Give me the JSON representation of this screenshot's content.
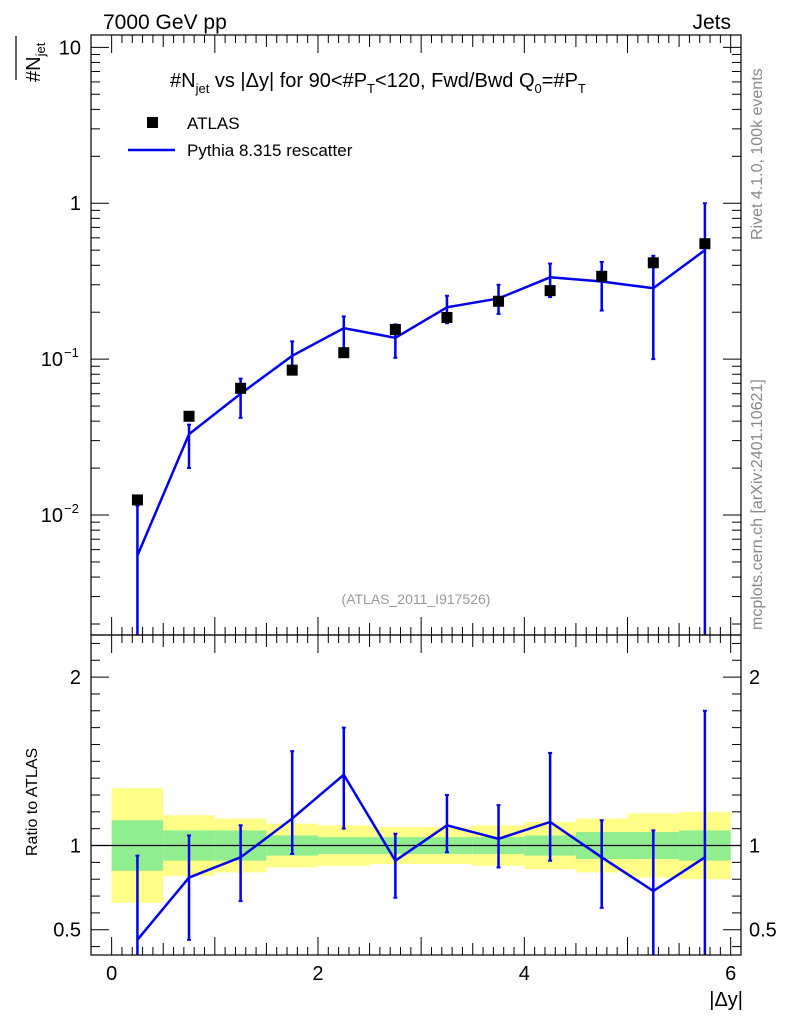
{
  "header": {
    "left": "7000 GeV pp",
    "right": "Jets"
  },
  "side_labels": {
    "rivet": "Rivet 4.1.0,  100k events",
    "mcplots": "mcplots.cern.ch [arXiv:2401.10621]"
  },
  "colors": {
    "mc": "#0000ee",
    "data": "#000000",
    "band_inner": "#90ee90",
    "band_outer": "#ffff88",
    "side_text": "#888888"
  },
  "chart_data": [
    {
      "type": "scatter+line",
      "title": "#N_jet vs |Δy| for 90<#P_T<120, Fwd/Bwd Q0=#P_T",
      "title_parts": {
        "a": "#N",
        "b": "jet",
        "c": " vs |Δy| for 90<#",
        "d": "P",
        "e": "T",
        "f": "<120, Fwd/Bwd Q",
        "g": "0",
        "h": "=#",
        "i": "P",
        "j": "T"
      },
      "ylabel_parts": {
        "a": "#N",
        "b": "jet"
      },
      "yscale": "log",
      "ylim": [
        0.0017,
        12
      ],
      "xlim": [
        -0.2,
        6.1
      ],
      "yticks": [
        {
          "value": 10,
          "label": "10"
        },
        {
          "value": 1,
          "label": "1"
        },
        {
          "value": 0.1,
          "base": "10",
          "exp": "−1"
        },
        {
          "value": 0.01,
          "base": "10",
          "exp": "−2"
        }
      ],
      "watermark": "(ATLAS_2011_I917526)",
      "legend": [
        {
          "key": "data",
          "label": "ATLAS"
        },
        {
          "key": "mc",
          "label": "Pythia 8.315 rescatter"
        }
      ],
      "x": [
        0.25,
        0.75,
        1.25,
        1.75,
        2.25,
        2.75,
        3.25,
        3.75,
        4.25,
        4.75,
        5.25,
        5.75
      ],
      "atlas": [
        0.0125,
        0.043,
        0.065,
        0.085,
        0.11,
        0.155,
        0.185,
        0.235,
        0.275,
        0.34,
        0.415,
        0.55
      ],
      "pythia": [
        0.0055,
        0.033,
        0.06,
        0.105,
        0.158,
        0.137,
        0.215,
        0.245,
        0.335,
        0.315,
        0.285,
        0.5
      ],
      "pythia_err_low": [
        0.0055,
        0.013,
        0.018,
        0.025,
        0.04,
        0.035,
        0.045,
        0.05,
        0.085,
        0.11,
        0.185,
        0.5
      ],
      "pythia_err_high": [
        0.006,
        0.005,
        0.015,
        0.025,
        0.03,
        0.03,
        0.04,
        0.055,
        0.075,
        0.105,
        0.175,
        0.5
      ]
    },
    {
      "type": "ratio",
      "ylabel": "Ratio to ATLAS",
      "ylim": [
        0.35,
        2.25
      ],
      "yticks": [
        {
          "value": 2,
          "label": "2"
        },
        {
          "value": 1,
          "label": "1"
        },
        {
          "value": 0.5,
          "label": "0.5"
        }
      ],
      "xticks": [
        {
          "value": 0,
          "label": "0"
        },
        {
          "value": 2,
          "label": "2"
        },
        {
          "value": 4,
          "label": "4"
        },
        {
          "value": 6,
          "label": "6"
        }
      ],
      "xlabel": "|Δy|",
      "x": [
        0.25,
        0.75,
        1.25,
        1.75,
        2.25,
        2.75,
        3.25,
        3.75,
        4.25,
        4.75,
        5.25,
        5.75
      ],
      "ratio": [
        0.44,
        0.81,
        0.93,
        1.16,
        1.42,
        0.91,
        1.12,
        1.04,
        1.14,
        0.93,
        0.73,
        0.93
      ],
      "ratio_low": [
        0.0,
        0.44,
        0.67,
        0.95,
        1.1,
        0.69,
        0.96,
        0.87,
        0.91,
        0.63,
        0.0,
        0.0
      ],
      "ratio_high": [
        0.94,
        1.06,
        1.12,
        1.56,
        1.7,
        1.07,
        1.3,
        1.24,
        1.55,
        1.15,
        1.09,
        1.8
      ],
      "band_inner_low": [
        0.85,
        0.91,
        0.91,
        0.94,
        0.95,
        0.95,
        0.95,
        0.95,
        0.94,
        0.92,
        0.92,
        0.91
      ],
      "band_inner_high": [
        1.15,
        1.09,
        1.09,
        1.06,
        1.05,
        1.05,
        1.05,
        1.05,
        1.06,
        1.08,
        1.08,
        1.09
      ],
      "band_outer_low": [
        0.66,
        0.82,
        0.84,
        0.87,
        0.88,
        0.89,
        0.89,
        0.88,
        0.86,
        0.84,
        0.81,
        0.8
      ],
      "band_outer_high": [
        1.34,
        1.18,
        1.16,
        1.13,
        1.12,
        1.11,
        1.11,
        1.12,
        1.14,
        1.16,
        1.19,
        1.2
      ]
    }
  ]
}
